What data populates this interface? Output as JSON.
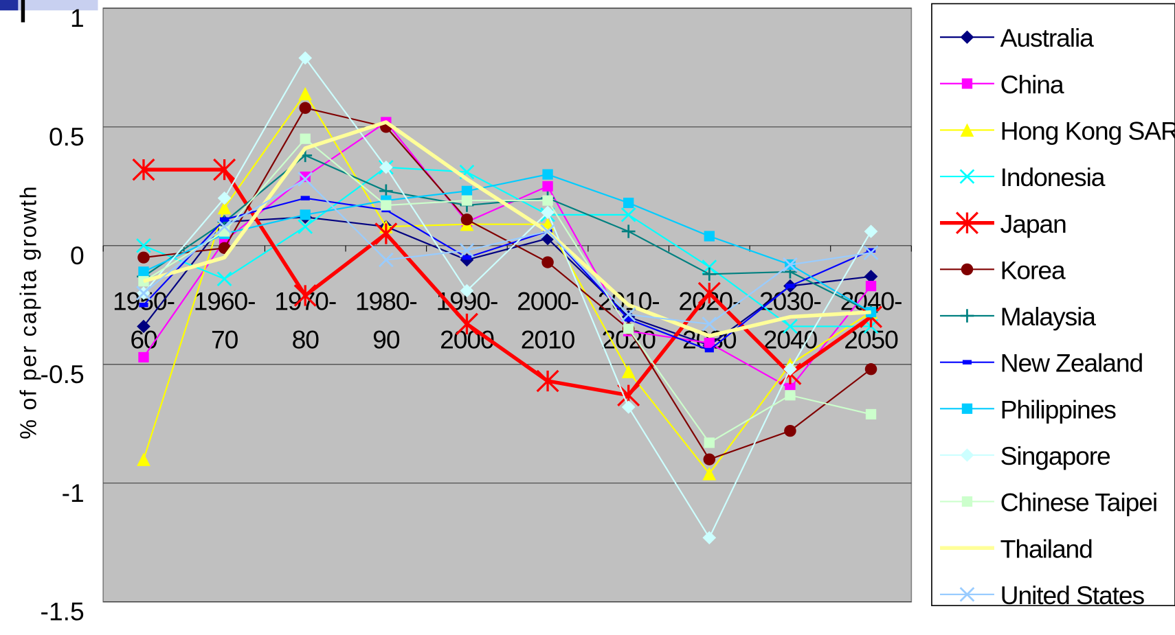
{
  "chart_data": {
    "type": "line",
    "y_label": "% of per capita growth",
    "categories": [
      "1950-\n60",
      "1960-\n70",
      "1970-\n80",
      "1980-\n90",
      "1990-\n2000",
      "2000-\n2010",
      "2010-\n2020",
      "2020-\n2030",
      "2030-\n2040",
      "2040-\n2050"
    ],
    "ylim": [
      -1.5,
      1
    ],
    "yticks": [
      1,
      0.5,
      0,
      -0.5,
      -1,
      -1.5
    ],
    "grid": true,
    "series": [
      {
        "name": "Australia",
        "color": "#000080",
        "marker": "diamond",
        "values": [
          -0.34,
          0.1,
          0.12,
          0.08,
          -0.06,
          0.03,
          -0.3,
          -0.42,
          -0.17,
          -0.13
        ]
      },
      {
        "name": "China",
        "color": "#ff00ff",
        "marker": "square",
        "values": [
          -0.47,
          0.02,
          0.29,
          0.52,
          0.1,
          0.25,
          -0.36,
          -0.41,
          -0.6,
          -0.17
        ]
      },
      {
        "name": "Hong Kong SAR",
        "color": "#ffff00",
        "marker": "triangle",
        "values": [
          -0.9,
          0.16,
          0.64,
          0.08,
          0.09,
          0.09,
          -0.53,
          -0.96,
          -0.5,
          -0.28
        ]
      },
      {
        "name": "Indonesia",
        "color": "#00ffff",
        "marker": "x",
        "values": [
          0,
          -0.14,
          0.08,
          0.33,
          0.31,
          0.13,
          0.13,
          -0.09,
          -0.34,
          -0.34
        ]
      },
      {
        "name": "Japan",
        "color": "#ff0000",
        "marker": "asterisk",
        "values": [
          0.32,
          0.32,
          -0.21,
          0.05,
          -0.33,
          -0.57,
          -0.63,
          -0.2,
          -0.54,
          -0.3
        ]
      },
      {
        "name": "Korea",
        "color": "#800000",
        "marker": "circle",
        "values": [
          -0.05,
          -0.01,
          0.58,
          0.5,
          0.11,
          -0.07,
          -0.35,
          -0.9,
          -0.78,
          -0.52
        ]
      },
      {
        "name": "Malaysia",
        "color": "#008080",
        "marker": "plus",
        "values": [
          -0.13,
          0.1,
          0.38,
          0.23,
          0.17,
          0.2,
          0.06,
          -0.12,
          -0.11,
          -0.28
        ]
      },
      {
        "name": "New Zealand",
        "color": "#0000ff",
        "marker": "dash",
        "values": [
          -0.25,
          0.11,
          0.2,
          0.15,
          -0.05,
          0.06,
          -0.31,
          -0.44,
          -0.17,
          -0.02
        ]
      },
      {
        "name": "Philippines",
        "color": "#00ccff",
        "marker": "square",
        "values": [
          -0.11,
          0.05,
          0.13,
          0.19,
          0.23,
          0.3,
          0.18,
          0.04,
          -0.08,
          -0.28
        ]
      },
      {
        "name": "Singapore",
        "color": "#ccffff",
        "marker": "diamond",
        "values": [
          -0.2,
          0.2,
          0.79,
          0.33,
          -0.19,
          0.14,
          -0.68,
          -1.23,
          -0.52,
          0.06
        ]
      },
      {
        "name": "Chinese Taipei",
        "color": "#ccffcc",
        "marker": "square",
        "values": [
          -0.15,
          0.06,
          0.45,
          0.17,
          0.19,
          0.19,
          -0.35,
          -0.83,
          -0.63,
          -0.71
        ]
      },
      {
        "name": "Thailand",
        "color": "#ffff99",
        "marker": "none",
        "values": [
          -0.15,
          -0.05,
          0.41,
          0.52,
          0.28,
          0.06,
          -0.25,
          -0.38,
          -0.3,
          -0.28
        ]
      },
      {
        "name": "United States",
        "color": "#99ccff",
        "marker": "x",
        "values": [
          -0.2,
          0.08,
          0.28,
          -0.06,
          -0.02,
          0.06,
          -0.29,
          -0.33,
          -0.08,
          -0.03
        ]
      }
    ]
  }
}
